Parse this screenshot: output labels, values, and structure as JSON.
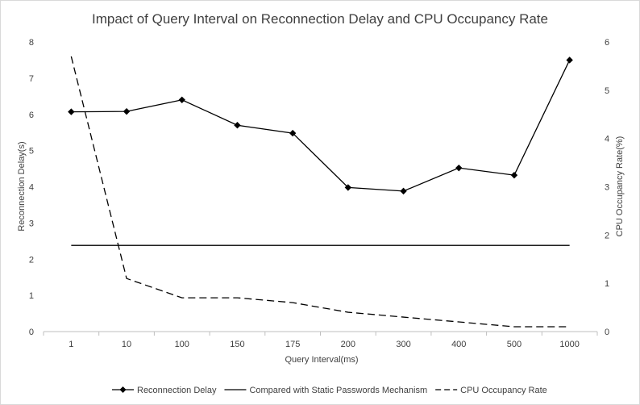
{
  "chart_data": {
    "type": "line",
    "title": "Impact of Query Interval on Reconnection Delay and CPU Occupancy Rate",
    "xlabel": "Query Interval(ms)",
    "ylabel": "Reconnection Delay(s)",
    "y2label": "CPU Occupancy Rate(%)",
    "categories": [
      "1",
      "10",
      "100",
      "150",
      "175",
      "200",
      "300",
      "400",
      "500",
      "1000"
    ],
    "ylim": [
      0,
      8
    ],
    "y2lim": [
      0,
      6
    ],
    "yticks": [
      "0",
      "1",
      "2",
      "3",
      "4",
      "5",
      "6",
      "7",
      "8"
    ],
    "y2ticks": [
      "0",
      "1",
      "2",
      "3",
      "4",
      "5",
      "6"
    ],
    "grid": false,
    "legend": "bottom",
    "series": [
      {
        "name": "Reconnection Delay",
        "axis": "left",
        "style": "solid-marker",
        "marker": "diamond",
        "values": [
          6.07,
          6.08,
          6.4,
          5.7,
          5.48,
          3.98,
          3.88,
          4.52,
          4.32,
          7.5
        ]
      },
      {
        "name": "Compared with Static Passwords Mechanism",
        "axis": "left",
        "style": "solid",
        "values": [
          2.38,
          2.38,
          2.38,
          2.38,
          2.38,
          2.38,
          2.38,
          2.38,
          2.38,
          2.38
        ]
      },
      {
        "name": "CPU Occupancy Rate",
        "axis": "right",
        "style": "dashed",
        "values": [
          5.7,
          1.1,
          0.7,
          0.7,
          0.6,
          0.4,
          0.3,
          0.2,
          0.1,
          0.1
        ]
      }
    ],
    "colors": {
      "line": "#000000",
      "text": "#404040",
      "axis": "#bfbfbf"
    }
  }
}
